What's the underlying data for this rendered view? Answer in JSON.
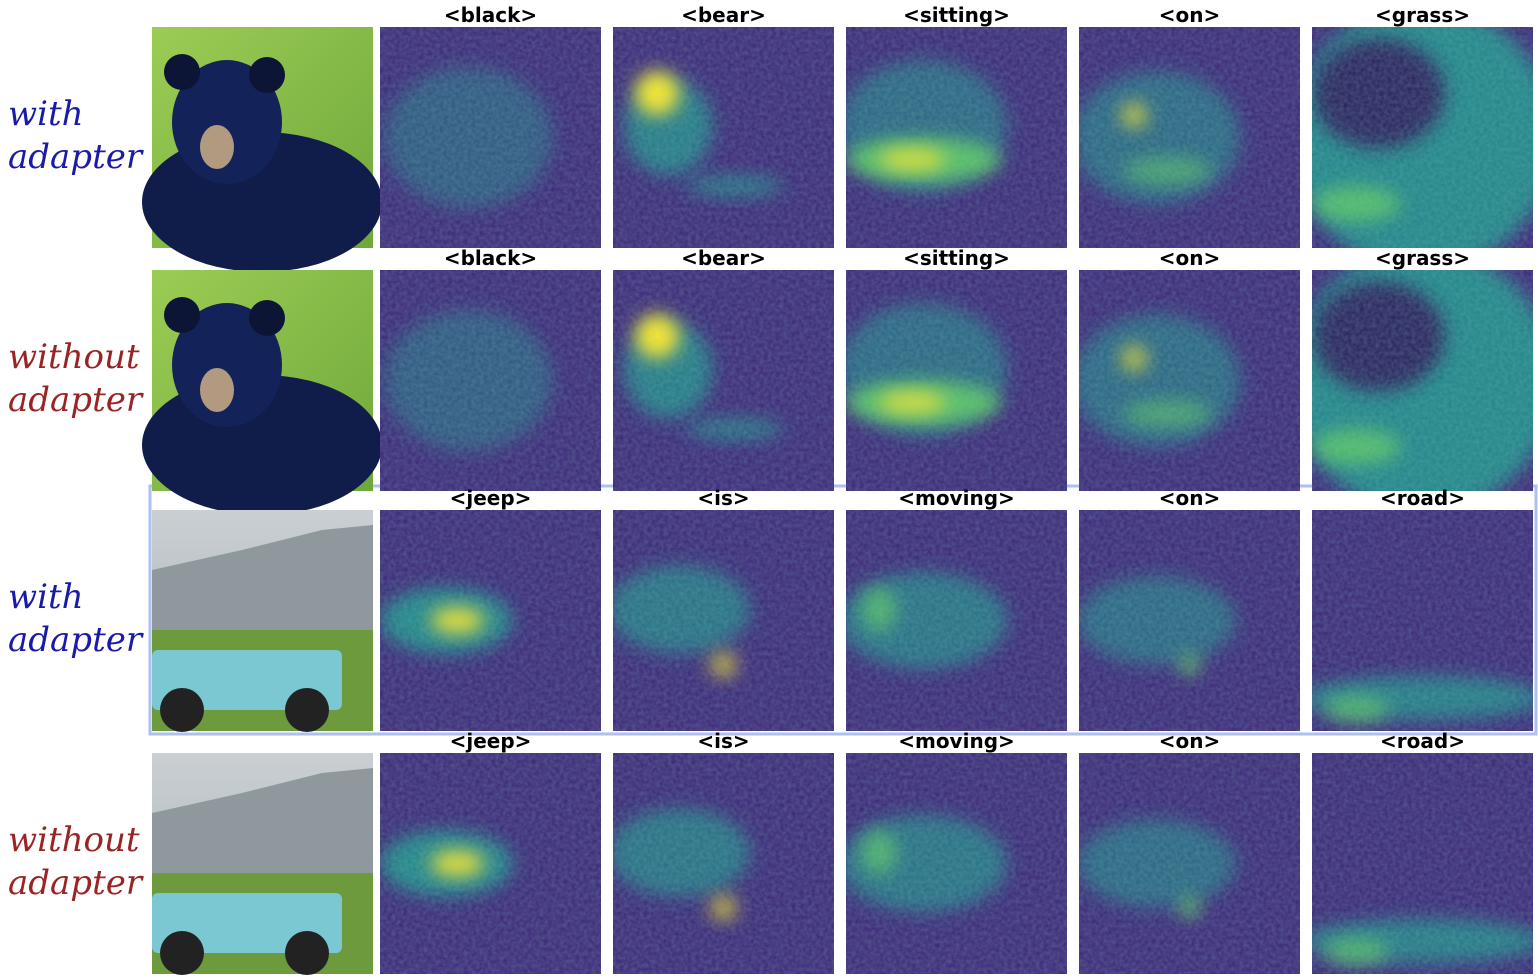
{
  "rows": [
    {
      "label": [
        "with",
        "adapter"
      ],
      "color": "#1a1aa8",
      "tokens": [
        "<black>",
        "<bear>",
        "<sitting>",
        "<on>",
        "<grass>"
      ]
    },
    {
      "label": [
        "without",
        "adapter"
      ],
      "color": "#9a2424",
      "tokens": [
        "<black>",
        "<bear>",
        "<sitting>",
        "<on>",
        "<grass>"
      ]
    },
    {
      "label": [
        "with",
        "adapter"
      ],
      "color": "#1a1aa8",
      "tokens": [
        "<jeep>",
        "<is>",
        "<moving>",
        "<on>",
        "<road>"
      ]
    },
    {
      "label": [
        "without",
        "adapter"
      ],
      "color": "#9a2424",
      "tokens": [
        "<jeep>",
        "<is>",
        "<moving>",
        "<on>",
        "<road>"
      ]
    }
  ]
}
